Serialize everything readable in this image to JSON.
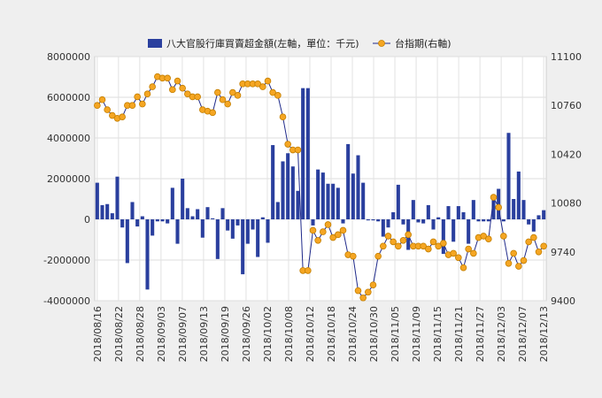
{
  "chart_data": {
    "type": "bar+line",
    "title": "",
    "legend_position": "top",
    "grid": true,
    "series": [
      {
        "name": "八大官股行庫買賣超金額(左軸，單位：千元)",
        "type": "bar",
        "axis": "left",
        "color": "#2a3f9e",
        "values": [
          1800000,
          700000,
          750000,
          300000,
          2100000,
          -400000,
          -2150000,
          850000,
          -350000,
          150000,
          -3450000,
          -800000,
          -100000,
          -100000,
          -200000,
          1550000,
          -1200000,
          2000000,
          550000,
          150000,
          500000,
          -900000,
          600000,
          50000,
          -1950000,
          550000,
          -550000,
          -950000,
          -300000,
          -2700000,
          -1200000,
          -500000,
          -1850000,
          100000,
          -1150000,
          3650000,
          850000,
          2850000,
          3250000,
          2600000,
          1400000,
          6450000,
          6450000,
          -300000,
          2450000,
          2300000,
          1750000,
          1750000,
          1550000,
          -200000,
          3700000,
          2250000,
          3150000,
          1800000,
          -50000,
          -50000,
          -100000,
          -850000,
          -400000,
          350000,
          1700000,
          -250000,
          -1500000,
          950000,
          -150000,
          -200000,
          700000,
          -500000,
          100000,
          -1700000,
          650000,
          -1100000,
          650000,
          350000,
          -1200000,
          950000,
          -100000,
          -100000,
          -100000,
          1000000,
          1500000,
          -100000,
          4250000,
          1000000,
          2350000,
          950000,
          -250000,
          -600000,
          200000,
          450000
        ]
      },
      {
        "name": "台指期(右軸)",
        "type": "line",
        "axis": "right",
        "color": "#f5a623",
        "line_color": "#1f2a8a",
        "values": [
          10760,
          10800,
          10730,
          10690,
          10670,
          10680,
          10760,
          10760,
          10820,
          10770,
          10840,
          10890,
          10960,
          10950,
          10950,
          10870,
          10930,
          10880,
          10840,
          10820,
          10820,
          10730,
          10720,
          10710,
          10850,
          10800,
          10770,
          10850,
          10830,
          10910,
          10910,
          10910,
          10910,
          10890,
          10930,
          10850,
          10830,
          10680,
          10490,
          10450,
          10450,
          9610,
          9610,
          9890,
          9820,
          9880,
          9930,
          9840,
          9860,
          9890,
          9720,
          9710,
          9470,
          9420,
          9460,
          9510,
          9710,
          9780,
          9850,
          9810,
          9780,
          9820,
          9860,
          9780,
          9780,
          9780,
          9760,
          9810,
          9780,
          9800,
          9720,
          9730,
          9700,
          9630,
          9760,
          9730,
          9840,
          9850,
          9830,
          10120,
          10050,
          9850,
          9660,
          9730,
          9640,
          9680,
          9810,
          9840,
          9740,
          9780
        ]
      }
    ],
    "x_labels": [
      "2018/08/16",
      "2018/08/22",
      "2018/08/28",
      "2018/09/03",
      "2018/09/07",
      "2018/09/13",
      "2018/09/19",
      "2018/09/26",
      "2018/10/02",
      "2018/10/08",
      "2018/10/12",
      "2018/10/18",
      "2018/10/24",
      "2018/10/30",
      "2018/11/05",
      "2018/11/09",
      "2018/11/15",
      "2018/11/21",
      "2018/11/27",
      "2018/12/03",
      "2018/12/07",
      "2018/12/13"
    ],
    "y_left": {
      "min": -4000000,
      "max": 8000000,
      "ticks": [
        "8000000",
        "6000000",
        "4000000",
        "2000000",
        "0",
        "-2000000",
        "-4000000"
      ]
    },
    "y_right": {
      "min": 9400,
      "max": 11100,
      "ticks": [
        "11100",
        "10760",
        "10420",
        "10080",
        "9740",
        "9400"
      ]
    }
  }
}
